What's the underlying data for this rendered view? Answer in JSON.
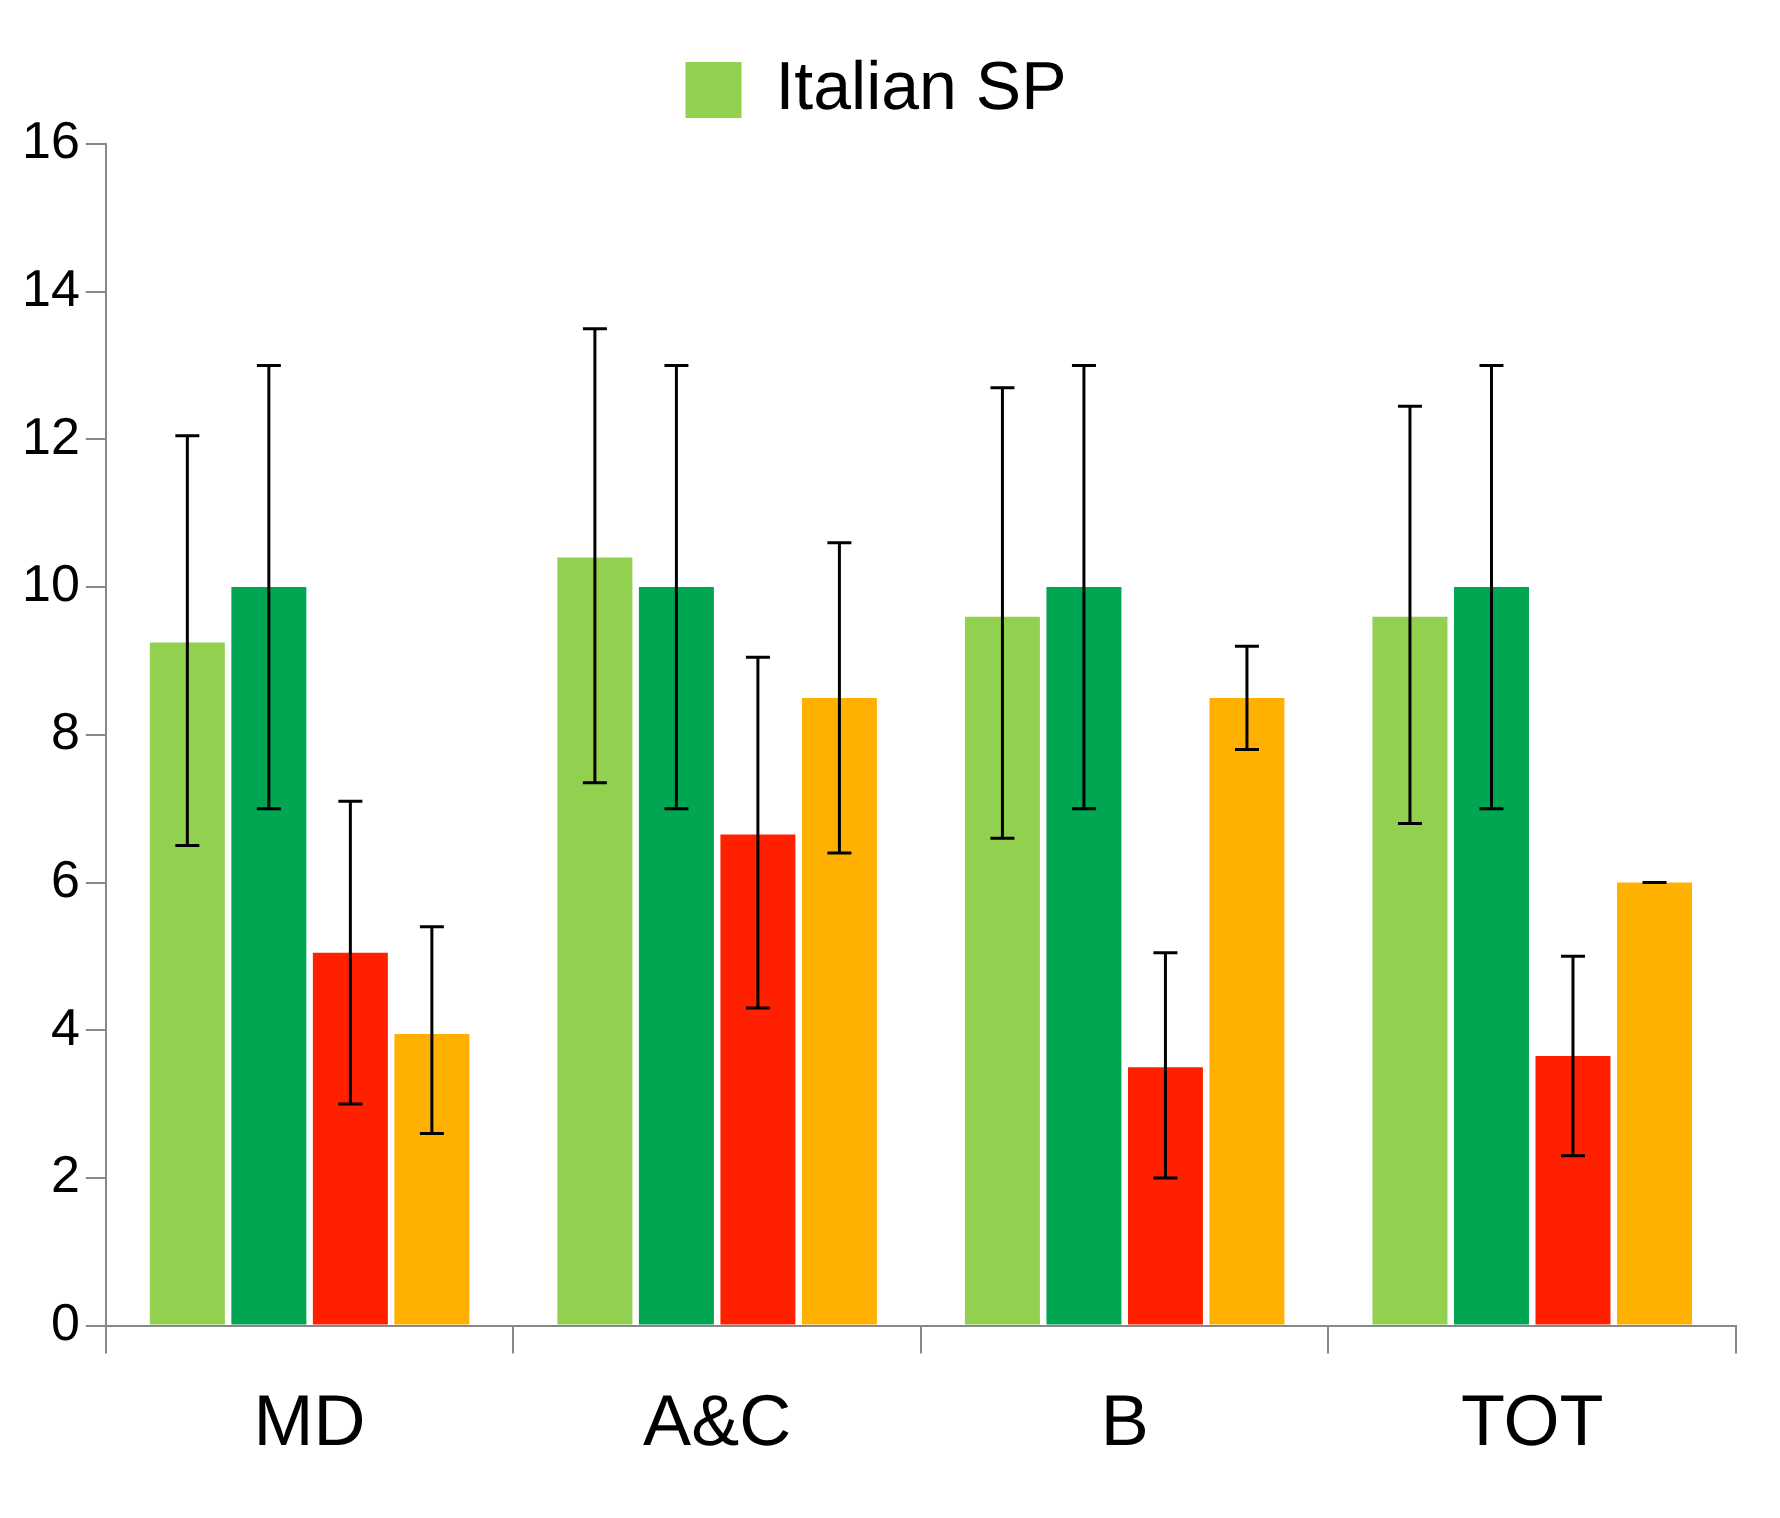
{
  "chart_data": {
    "type": "bar",
    "categories": [
      "MD",
      "A&C",
      "B",
      "TOT"
    ],
    "series": [
      {
        "name": "Italian SP",
        "color": "#92d050",
        "values": [
          9.25,
          10.4,
          9.6,
          9.6
        ],
        "errors": [
          [
            6.5,
            12.05
          ],
          [
            7.35,
            13.5
          ],
          [
            6.6,
            12.7
          ],
          [
            6.8,
            12.45
          ]
        ]
      },
      {
        "color": "#00a651",
        "values": [
          10,
          10,
          10,
          10
        ],
        "errors": [
          [
            7,
            13
          ],
          [
            7,
            13
          ],
          [
            7,
            13
          ],
          [
            7,
            13
          ]
        ]
      },
      {
        "color": "#ff2000",
        "values": [
          5.05,
          6.65,
          3.5,
          3.65
        ],
        "errors": [
          [
            3,
            7.1
          ],
          [
            4.3,
            9.05
          ],
          [
            2,
            5.05
          ],
          [
            2.3,
            5
          ]
        ]
      },
      {
        "color": "#ffb000",
        "values": [
          3.95,
          8.5,
          8.5,
          6
        ],
        "errors": [
          [
            2.6,
            5.4
          ],
          [
            6.4,
            10.6
          ],
          [
            7.8,
            9.2
          ],
          [
            6,
            6
          ]
        ]
      }
    ],
    "ylim": [
      0,
      16
    ],
    "yticks": [
      0,
      2,
      4,
      6,
      8,
      10,
      12,
      14,
      16
    ],
    "grid": false,
    "legend": "top"
  }
}
